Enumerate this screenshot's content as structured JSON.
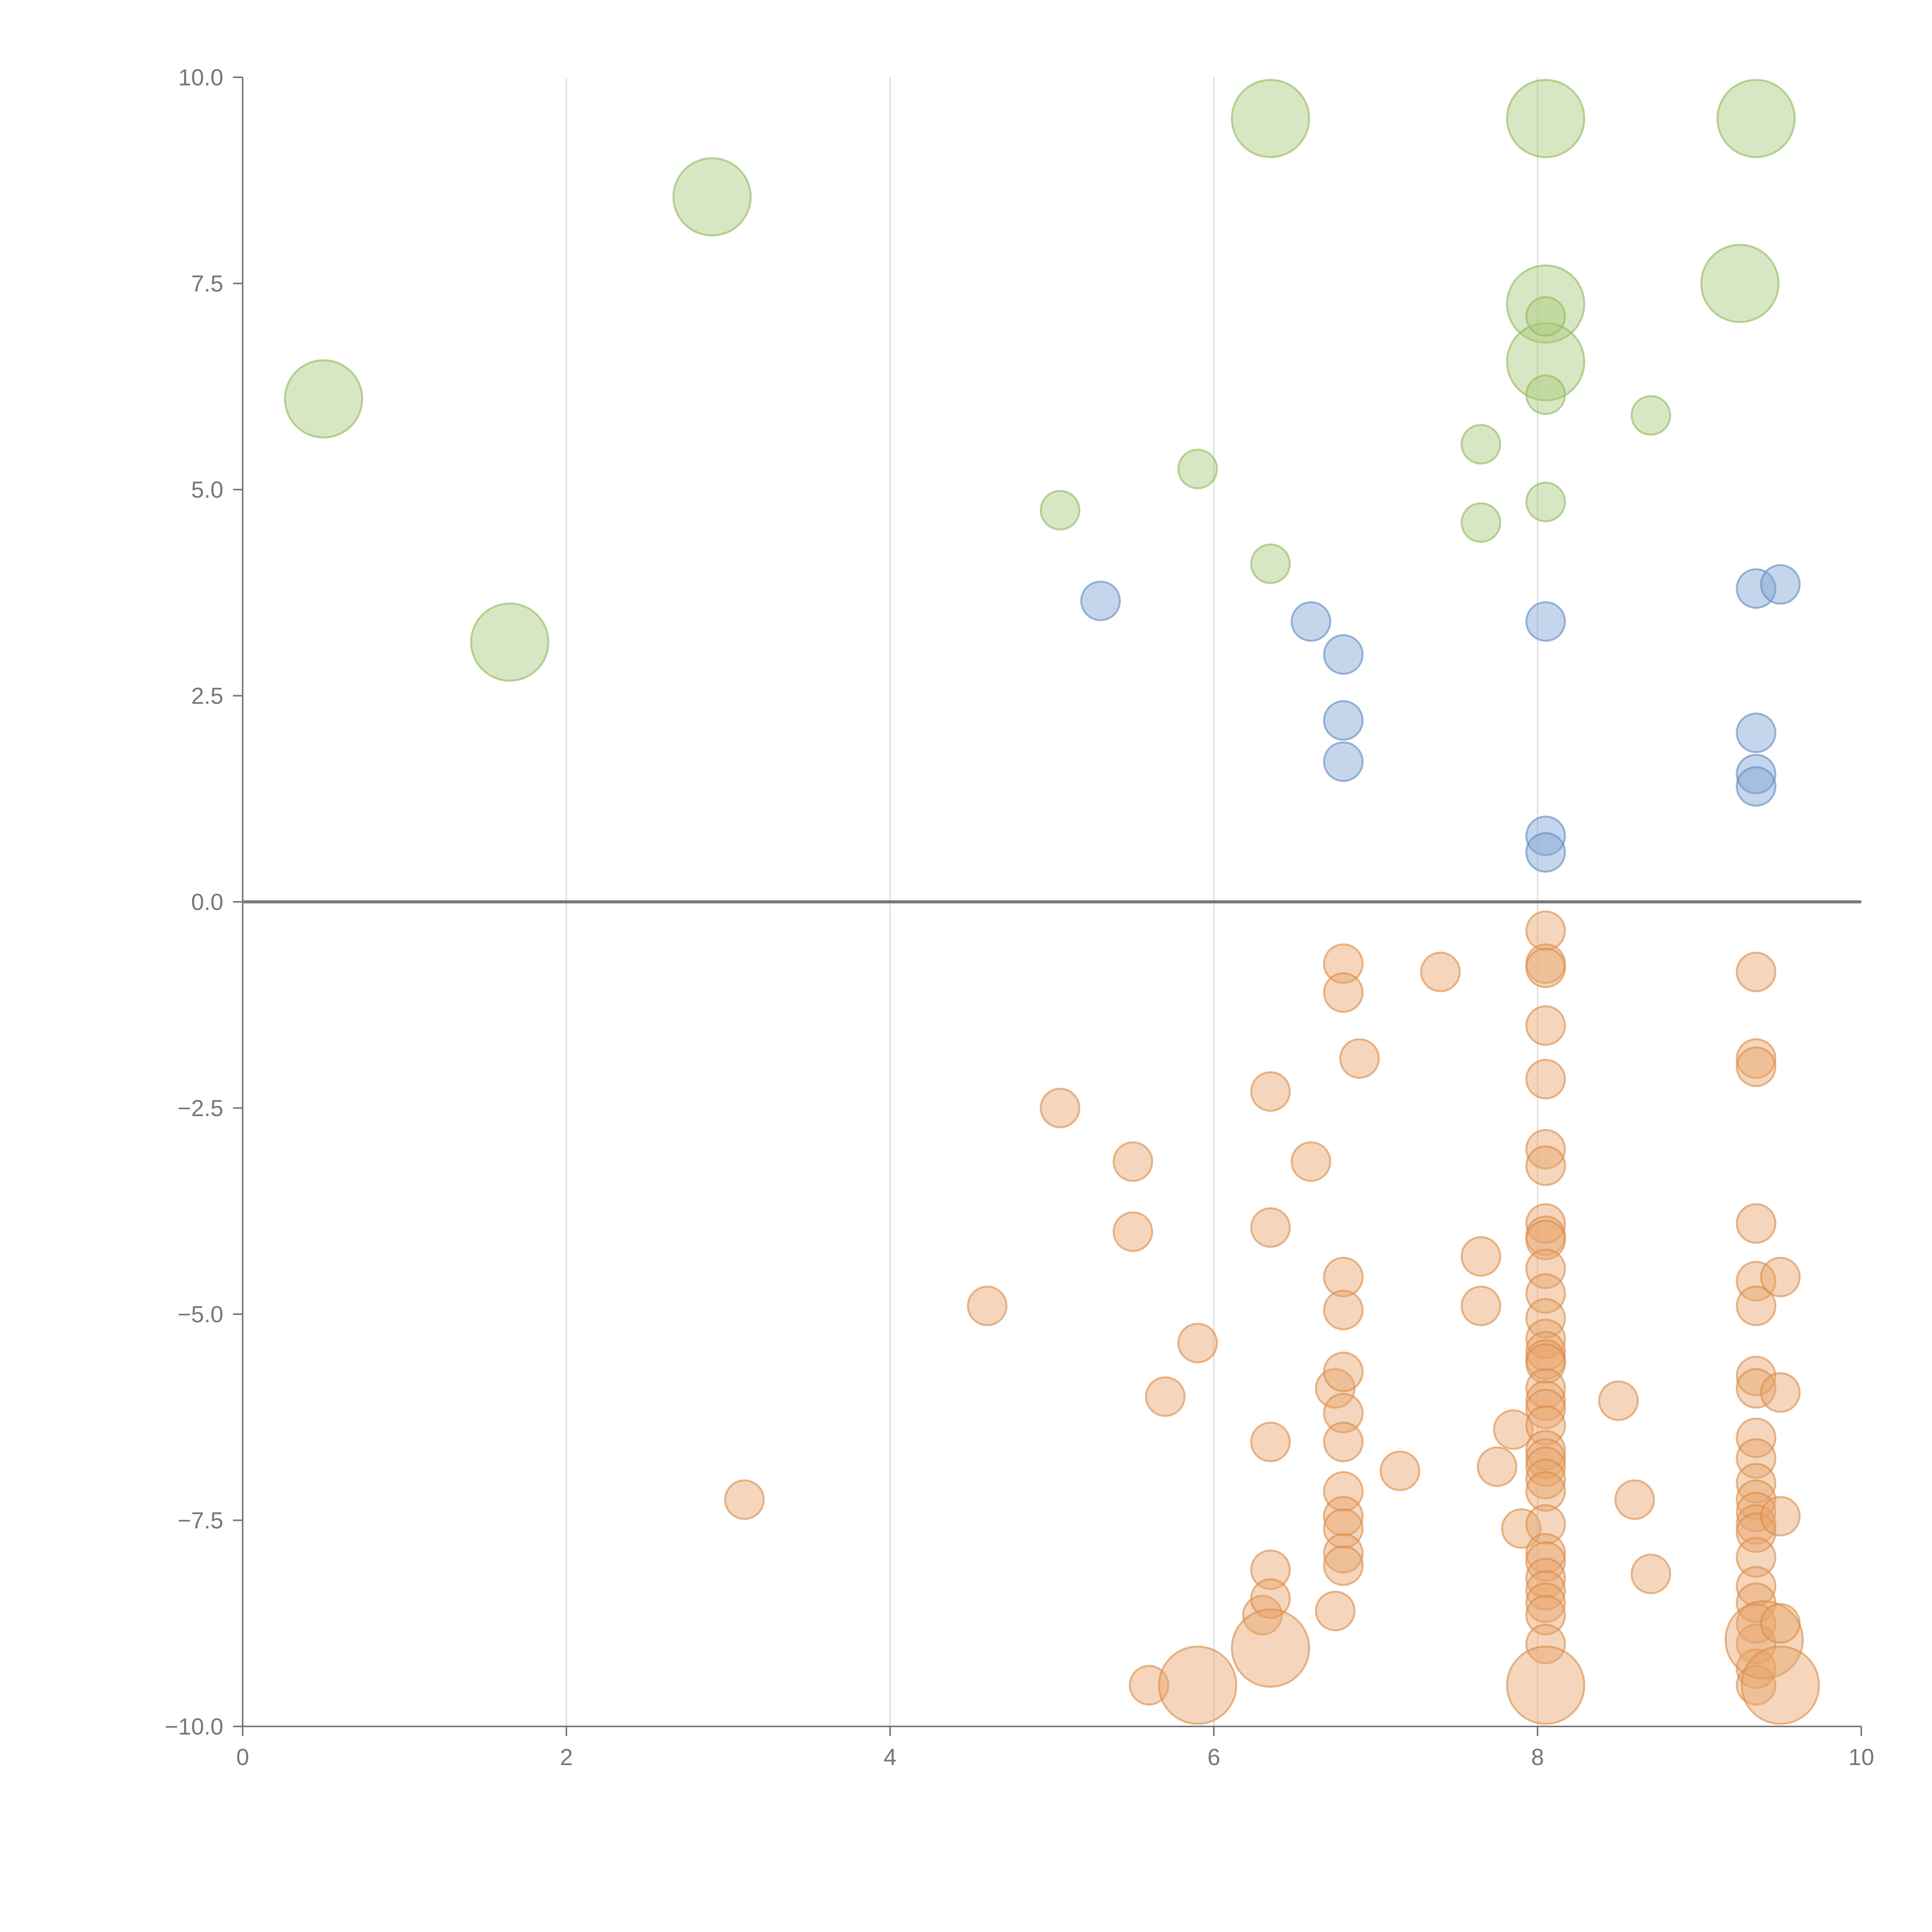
{
  "chart_data": {
    "type": "scatter",
    "title": "",
    "xlabel": "",
    "ylabel": "",
    "xlim": [
      0,
      10
    ],
    "ylim": [
      -10,
      10
    ],
    "x_ticks": [
      "0",
      "2",
      "4",
      "6",
      "8",
      "10"
    ],
    "x_tick_values": [
      0,
      2,
      4,
      6,
      8,
      10
    ],
    "y_ticks": [
      "10.0",
      "7.5",
      "5.0",
      "2.5",
      "0.0",
      "−2.5",
      "−5.0",
      "−7.5",
      "−10.0"
    ],
    "y_tick_values": [
      10,
      7.5,
      5,
      2.5,
      0,
      -2.5,
      -5,
      -7.5,
      -10
    ],
    "grid_x": [
      2,
      4,
      6,
      8
    ],
    "zero_line": 0,
    "legend": "none",
    "series": [
      {
        "name": "green",
        "color": "#a9c97a",
        "stroke": "#8fb85a",
        "points": [
          [
            0.5,
            6.1,
            3
          ],
          [
            1.65,
            3.15,
            3
          ],
          [
            2.9,
            8.55,
            3
          ],
          [
            5.05,
            4.75,
            1
          ],
          [
            5.9,
            5.25,
            1
          ],
          [
            6.35,
            4.1,
            1
          ],
          [
            6.35,
            9.5,
            3
          ],
          [
            7.65,
            5.55,
            1
          ],
          [
            7.65,
            4.6,
            1
          ],
          [
            8.05,
            9.5,
            3
          ],
          [
            8.05,
            7.25,
            3
          ],
          [
            8.05,
            6.55,
            3
          ],
          [
            8.05,
            7.1,
            1
          ],
          [
            8.05,
            6.15,
            1
          ],
          [
            8.05,
            4.85,
            1
          ],
          [
            8.7,
            5.9,
            1
          ],
          [
            9.25,
            7.5,
            3
          ],
          [
            9.35,
            9.5,
            3
          ]
        ]
      },
      {
        "name": "blue",
        "color": "#7fa3d4",
        "stroke": "#5f89c2",
        "points": [
          [
            5.3,
            3.65,
            1
          ],
          [
            6.6,
            3.4,
            1
          ],
          [
            6.8,
            3.0,
            1
          ],
          [
            6.8,
            2.2,
            1
          ],
          [
            6.8,
            1.7,
            1
          ],
          [
            8.05,
            3.4,
            1
          ],
          [
            8.05,
            0.8,
            1
          ],
          [
            8.05,
            0.6,
            1
          ],
          [
            9.35,
            3.8,
            1
          ],
          [
            9.5,
            3.85,
            1
          ],
          [
            9.35,
            2.05,
            1
          ],
          [
            9.35,
            1.55,
            1
          ],
          [
            9.35,
            1.4,
            1
          ]
        ]
      },
      {
        "name": "orange",
        "color": "#e8a46a",
        "stroke": "#d98a48",
        "points": [
          [
            3.1,
            -7.25,
            1
          ],
          [
            4.6,
            -4.9,
            1
          ],
          [
            5.05,
            -2.5,
            1
          ],
          [
            5.5,
            -3.15,
            1
          ],
          [
            5.5,
            -4.0,
            1
          ],
          [
            5.6,
            -9.5,
            1
          ],
          [
            5.7,
            -6.0,
            1
          ],
          [
            5.9,
            -5.35,
            1
          ],
          [
            5.9,
            -9.5,
            3
          ],
          [
            6.3,
            -8.65,
            1
          ],
          [
            6.35,
            -2.3,
            1
          ],
          [
            6.35,
            -3.95,
            1
          ],
          [
            6.35,
            -6.55,
            1
          ],
          [
            6.35,
            -8.1,
            1
          ],
          [
            6.35,
            -8.45,
            1
          ],
          [
            6.35,
            -9.05,
            3
          ],
          [
            6.6,
            -3.15,
            1
          ],
          [
            6.75,
            -5.9,
            1
          ],
          [
            6.75,
            -8.6,
            1
          ],
          [
            6.8,
            -0.75,
            1
          ],
          [
            6.8,
            -1.1,
            1
          ],
          [
            6.8,
            -4.55,
            1
          ],
          [
            6.8,
            -4.95,
            1
          ],
          [
            6.8,
            -5.7,
            1
          ],
          [
            6.8,
            -6.2,
            1
          ],
          [
            6.8,
            -6.55,
            1
          ],
          [
            6.8,
            -7.15,
            1
          ],
          [
            6.8,
            -7.45,
            1
          ],
          [
            6.8,
            -7.6,
            1
          ],
          [
            6.8,
            -7.9,
            1
          ],
          [
            6.8,
            -8.05,
            1
          ],
          [
            6.9,
            -1.9,
            1
          ],
          [
            7.15,
            -6.9,
            1
          ],
          [
            7.4,
            -0.85,
            1
          ],
          [
            7.65,
            -4.3,
            1
          ],
          [
            7.65,
            -4.9,
            1
          ],
          [
            7.75,
            -6.85,
            1
          ],
          [
            7.85,
            -6.4,
            1
          ],
          [
            7.9,
            -7.6,
            1
          ],
          [
            8.05,
            -0.35,
            1
          ],
          [
            8.05,
            -0.75,
            1
          ],
          [
            8.05,
            -0.8,
            1
          ],
          [
            8.05,
            -1.5,
            1
          ],
          [
            8.05,
            -2.15,
            1
          ],
          [
            8.05,
            -3.0,
            1
          ],
          [
            8.05,
            -3.2,
            1
          ],
          [
            8.05,
            -3.9,
            1
          ],
          [
            8.05,
            -4.05,
            1
          ],
          [
            8.05,
            -4.1,
            1
          ],
          [
            8.05,
            -4.45,
            1
          ],
          [
            8.05,
            -4.75,
            1
          ],
          [
            8.05,
            -5.05,
            1
          ],
          [
            8.05,
            -5.3,
            1
          ],
          [
            8.05,
            -5.45,
            1
          ],
          [
            8.05,
            -5.55,
            1
          ],
          [
            8.05,
            -5.6,
            1
          ],
          [
            8.05,
            -5.9,
            1
          ],
          [
            8.05,
            -6.05,
            1
          ],
          [
            8.05,
            -6.15,
            1
          ],
          [
            8.05,
            -6.35,
            1
          ],
          [
            8.05,
            -6.65,
            1
          ],
          [
            8.05,
            -6.75,
            1
          ],
          [
            8.05,
            -6.85,
            1
          ],
          [
            8.05,
            -7.0,
            1
          ],
          [
            8.05,
            -7.15,
            1
          ],
          [
            8.05,
            -7.55,
            1
          ],
          [
            8.05,
            -7.9,
            1
          ],
          [
            8.05,
            -8.0,
            1
          ],
          [
            8.05,
            -8.2,
            1
          ],
          [
            8.05,
            -8.35,
            1
          ],
          [
            8.05,
            -8.5,
            1
          ],
          [
            8.05,
            -8.65,
            1
          ],
          [
            8.05,
            -9.0,
            1
          ],
          [
            8.05,
            -9.5,
            3
          ],
          [
            8.5,
            -6.05,
            1
          ],
          [
            8.6,
            -7.25,
            1
          ],
          [
            8.7,
            -8.15,
            1
          ],
          [
            9.35,
            -0.85,
            1
          ],
          [
            9.35,
            -1.9,
            1
          ],
          [
            9.35,
            -2.0,
            1
          ],
          [
            9.35,
            -3.9,
            1
          ],
          [
            9.35,
            -4.6,
            1
          ],
          [
            9.35,
            -4.9,
            1
          ],
          [
            9.35,
            -5.75,
            1
          ],
          [
            9.35,
            -5.9,
            1
          ],
          [
            9.35,
            -6.5,
            1
          ],
          [
            9.35,
            -6.75,
            1
          ],
          [
            9.35,
            -7.05,
            1
          ],
          [
            9.35,
            -7.25,
            1
          ],
          [
            9.35,
            -7.4,
            1
          ],
          [
            9.35,
            -7.55,
            1
          ],
          [
            9.35,
            -7.65,
            1
          ],
          [
            9.35,
            -7.95,
            1
          ],
          [
            9.35,
            -8.3,
            1
          ],
          [
            9.35,
            -8.5,
            1
          ],
          [
            9.35,
            -8.75,
            1
          ],
          [
            9.35,
            -9.0,
            1
          ],
          [
            9.35,
            -9.3,
            1
          ],
          [
            9.35,
            -9.5,
            1
          ],
          [
            9.4,
            -8.95,
            3
          ],
          [
            9.5,
            -4.55,
            1
          ],
          [
            9.5,
            -5.95,
            1
          ],
          [
            9.5,
            -7.45,
            1
          ],
          [
            9.5,
            -8.75,
            1
          ],
          [
            9.5,
            -9.5,
            3
          ]
        ]
      }
    ]
  }
}
